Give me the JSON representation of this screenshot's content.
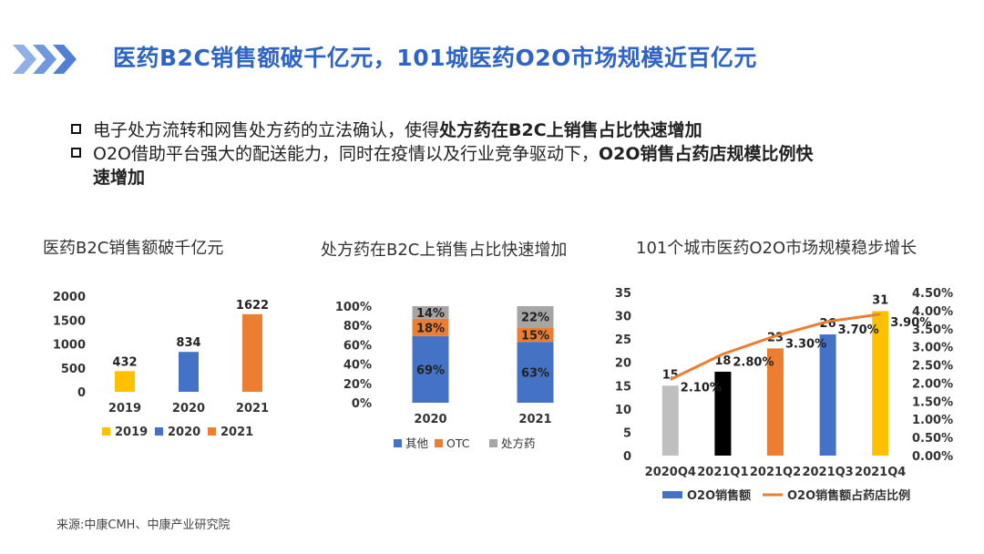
{
  "header": {
    "title": "医药B2C销售额破千亿元，101城医药O2O市场规模近百亿元"
  },
  "bullets": [
    {
      "normal": "电子处方流转和网售处方药的立法确认，使得",
      "bold": "处方药在B2C上销售占比快速增加"
    },
    {
      "normal": "O2O借助平台强大的配送能力，同时在疫情以及行业竞争驱动下，",
      "bold_line1": "O2O销售占药店规模比例快",
      "bold_line2": "速增加"
    }
  ],
  "source": "来源:中康CMH、中康产业研究院",
  "colors": {
    "blue": "#4472c4",
    "orange": "#ed7d31",
    "gold": "#ffc000",
    "gray": "#a5a5a5",
    "lightgray": "#bfbfbf",
    "black": "#000000",
    "title_blue": "#2e63c8"
  },
  "chart_data": [
    {
      "type": "bar",
      "title": "医药B2C销售额破千亿元",
      "categories": [
        "2019",
        "2020",
        "2021"
      ],
      "values": [
        432,
        834,
        1622
      ],
      "bar_colors": [
        "#ffc000",
        "#4472c4",
        "#ed7d31"
      ],
      "yticks": [
        "0",
        "500",
        "1000",
        "1500",
        "2000"
      ],
      "ylim": [
        0,
        2000
      ],
      "legend": [
        "2019",
        "2020",
        "2021"
      ],
      "legend_position": "bottom",
      "grid": false
    },
    {
      "type": "bar",
      "stacked": true,
      "title": "处方药在B2C上销售占比快速增加",
      "categories": [
        "2020",
        "2021"
      ],
      "series": [
        {
          "name": "其他",
          "values": [
            69,
            63
          ],
          "labels": [
            "69%",
            "63%"
          ],
          "color": "#4472c4"
        },
        {
          "name": "OTC",
          "values": [
            18,
            15
          ],
          "labels": [
            "18%",
            "15%"
          ],
          "color": "#ed7d31"
        },
        {
          "name": "处方药",
          "values": [
            14,
            22
          ],
          "labels": [
            "14%",
            "22%"
          ],
          "color": "#a5a5a5"
        }
      ],
      "yticks": [
        "0%",
        "20%",
        "40%",
        "60%",
        "80%",
        "100%"
      ],
      "ylim": [
        0,
        100
      ],
      "legend_position": "bottom",
      "grid": false
    },
    {
      "type": "bar",
      "title": "101个城市医药O2O市场规模稳步增长",
      "categories": [
        "2020Q4",
        "2021Q1",
        "2021Q2",
        "2021Q3",
        "2021Q4"
      ],
      "series": [
        {
          "name": "O2O销售额",
          "type": "bar",
          "values": [
            15,
            18,
            23,
            26,
            31
          ],
          "labels": [
            "15",
            "18",
            "23",
            "26",
            "31"
          ],
          "color": "#4472c4",
          "bar_colors": [
            "#bfbfbf",
            "#000000",
            "#ed7d31",
            "#4472c4",
            "#ffc000"
          ]
        },
        {
          "name": "O2O销售额占药店比例",
          "type": "line",
          "axis": "right",
          "values": [
            2.1,
            2.8,
            3.3,
            3.7,
            3.9
          ],
          "labels": [
            "2.10%",
            "2.80%",
            "3.30%",
            "3.70%",
            "3.90%"
          ],
          "color": "#ed7d31"
        }
      ],
      "yticks_left": [
        "0",
        "5",
        "10",
        "15",
        "20",
        "25",
        "30",
        "35"
      ],
      "ylim_left": [
        0,
        35
      ],
      "yticks_right": [
        "0.00%",
        "0.50%",
        "1.00%",
        "1.50%",
        "2.00%",
        "2.50%",
        "3.00%",
        "3.50%",
        "4.00%",
        "4.50%"
      ],
      "ylim_right": [
        0,
        4.5
      ],
      "legend_position": "bottom",
      "grid": false
    }
  ]
}
